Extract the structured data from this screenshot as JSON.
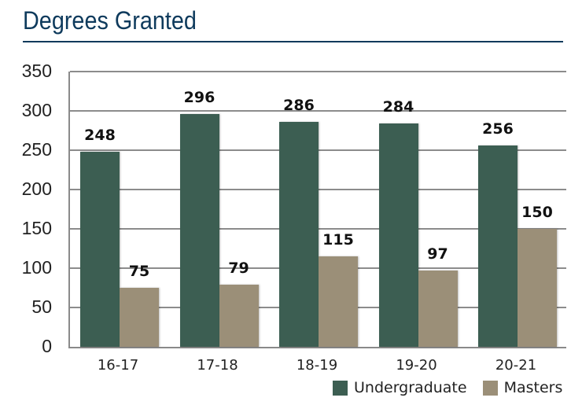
{
  "chart_data": {
    "type": "bar",
    "title": "Degrees Granted",
    "xlabel": "",
    "ylabel": "",
    "categories": [
      "16-17",
      "17-18",
      "18-19",
      "19-20",
      "20-21"
    ],
    "series": [
      {
        "name": "Undergraduate",
        "color": "#3c5e52",
        "values": [
          248,
          296,
          286,
          284,
          256
        ]
      },
      {
        "name": "Masters",
        "color": "#9b8f78",
        "values": [
          75,
          79,
          115,
          97,
          150
        ]
      }
    ],
    "ylim": [
      0,
      350
    ],
    "yticks": [
      "0",
      "50",
      "100",
      "150",
      "200",
      "250",
      "300",
      "350"
    ],
    "grid": true,
    "legend_position": "bottom-right",
    "data_labels": true
  },
  "title": "Degrees Granted",
  "legend": {
    "undergraduate": "Undergraduate",
    "masters": "Masters"
  },
  "colors": {
    "title": "#0e3a5c",
    "undergraduate": "#3c5e52",
    "masters": "#9b8f78",
    "grid": "#8c8c8c"
  }
}
